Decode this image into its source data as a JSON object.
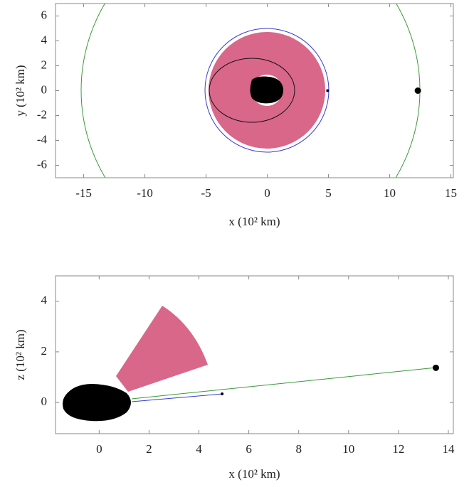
{
  "chart_data": [
    {
      "type": "scatter",
      "xlabel": "x (10² km)",
      "ylabel": "y (10² km)",
      "xlim": [
        -17.3,
        15.2
      ],
      "ylim": [
        -7,
        7
      ],
      "xticks": [
        -15,
        -10,
        -5,
        0,
        5,
        10,
        15
      ],
      "yticks": [
        -6,
        -4,
        -2,
        0,
        2,
        4,
        6
      ],
      "series": [
        {
          "color": "#000000",
          "x": [
            4.93,
            12.3
          ],
          "y": [
            0,
            0
          ],
          "marker_sizes": [
            2,
            4.5
          ]
        }
      ]
    },
    {
      "type": "scatter",
      "xlabel": "x (10² km)",
      "ylabel": "z (10² km)",
      "xlim": [
        -1.75,
        14.2
      ],
      "ylim": [
        -1.23,
        5
      ],
      "xticks": [
        0,
        2,
        4,
        6,
        8,
        10,
        12,
        14
      ],
      "yticks": [
        0,
        2,
        4
      ],
      "series": [
        {
          "color": "#000000",
          "x": [
            4.93,
            13.5
          ],
          "y": [
            0.34,
            1.37
          ],
          "marker_sizes": [
            2,
            4.5
          ]
        }
      ]
    }
  ]
}
